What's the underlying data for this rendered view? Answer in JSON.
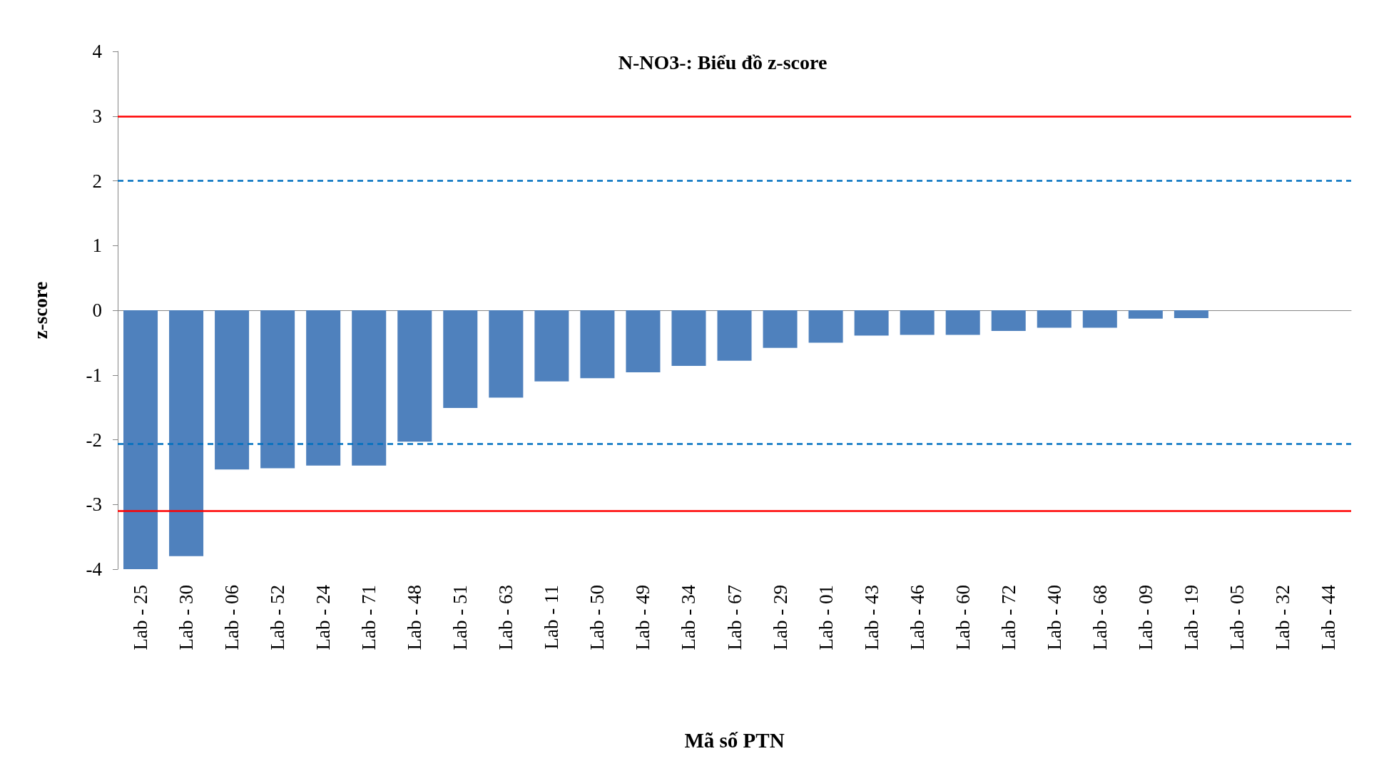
{
  "chart_data": {
    "type": "bar",
    "title": "N-NO3-: Biểu đồ z-score",
    "xlabel": "Mã số PTN",
    "ylabel": "z-score",
    "categories": [
      "Lab - 25",
      "Lab - 30",
      "Lab - 06",
      "Lab - 52",
      "Lab - 24",
      "Lab - 71",
      "Lab - 48",
      "Lab - 51",
      "Lab - 63",
      "Lab - 11",
      "Lab - 50",
      "Lab - 49",
      "Lab - 34",
      "Lab - 67",
      "Lab - 29",
      "Lab - 01",
      "Lab - 43",
      "Lab - 46",
      "Lab - 60",
      "Lab - 72",
      "Lab - 40",
      "Lab - 68",
      "Lab - 09",
      "Lab - 19",
      "Lab - 05",
      "Lab - 32",
      "Lab - 44"
    ],
    "values": [
      -4.0,
      -3.8,
      -2.46,
      -2.44,
      -2.4,
      -2.4,
      -2.03,
      -1.51,
      -1.35,
      -1.1,
      -1.05,
      -0.96,
      -0.86,
      -0.78,
      -0.58,
      -0.5,
      -0.39,
      -0.38,
      -0.38,
      -0.32,
      -0.27,
      -0.27,
      -0.13,
      -0.12,
      0,
      0,
      0
    ],
    "color": "#4f81bd",
    "ylim": [
      -4,
      4
    ],
    "yticks": [
      -4,
      -3,
      -2,
      -1,
      0,
      1,
      2,
      3,
      4
    ],
    "grid": false,
    "ref_lines": [
      {
        "axis": "y",
        "value": 3,
        "color": "#ff0000",
        "line_style": "solid"
      },
      {
        "axis": "y",
        "value": -3.1,
        "color": "#ff0000",
        "line_style": "solid"
      },
      {
        "axis": "y",
        "value": 2,
        "color": "#0070c0",
        "line_style": "dashed"
      },
      {
        "axis": "y",
        "value": -2.06,
        "color": "#0070c0",
        "line_style": "dashed"
      }
    ]
  }
}
